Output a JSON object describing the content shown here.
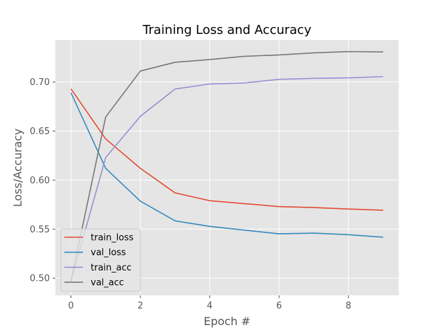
{
  "chart_data": {
    "type": "line",
    "title": "Training Loss and Accuracy",
    "xlabel": "Epoch #",
    "ylabel": "Loss/Accuracy",
    "xlim": [
      -0.45,
      9.45
    ],
    "ylim": [
      0.4825,
      0.7427
    ],
    "xticks": [
      0,
      2,
      4,
      6,
      8
    ],
    "xtick_labels": [
      "0",
      "2",
      "4",
      "6",
      "8"
    ],
    "yticks": [
      0.5,
      0.55,
      0.6,
      0.65,
      0.7
    ],
    "ytick_labels": [
      "0.50",
      "0.55",
      "0.60",
      "0.65",
      "0.70"
    ],
    "grid": true,
    "legend_position": "lower-left",
    "x": [
      0,
      1,
      2,
      3,
      4,
      5,
      6,
      7,
      8,
      9
    ],
    "series": [
      {
        "name": "train_loss",
        "color": "#E24A33",
        "values": [
          0.693,
          0.642,
          0.612,
          0.587,
          0.579,
          0.576,
          0.573,
          0.572,
          0.5705,
          0.5693
        ]
      },
      {
        "name": "val_loss",
        "color": "#348ABD",
        "values": [
          0.689,
          0.612,
          0.5785,
          0.5585,
          0.5528,
          0.549,
          0.5452,
          0.5459,
          0.5443,
          0.5418
        ]
      },
      {
        "name": "train_acc",
        "color": "#988ED5",
        "values": [
          0.497,
          0.623,
          0.665,
          0.6928,
          0.698,
          0.699,
          0.7027,
          0.7037,
          0.7042,
          0.7055
        ]
      },
      {
        "name": "val_acc",
        "color": "#777777",
        "values": [
          0.497,
          0.6643,
          0.7112,
          0.7201,
          0.7229,
          0.7262,
          0.7276,
          0.7297,
          0.731,
          0.7307
        ]
      }
    ]
  }
}
